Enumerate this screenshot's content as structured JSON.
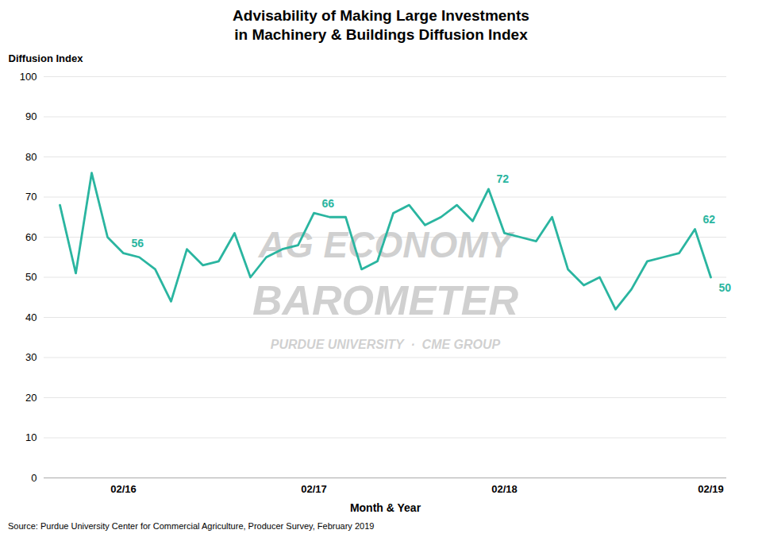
{
  "chart_data": {
    "type": "line",
    "title": "Advisability of Making Large Investments\nin Machinery & Buildings Diffusion Index",
    "ylabel": "Diffusion Index",
    "xlabel": "Month & Year",
    "source": "Source: Purdue University Center for Commercial Agriculture, Producer Survey, February 2019",
    "color": "#2ab5a0",
    "categories": [
      null,
      null,
      null,
      null,
      "02/16",
      null,
      null,
      null,
      null,
      null,
      null,
      null,
      null,
      null,
      null,
      null,
      "02/17",
      null,
      null,
      null,
      null,
      null,
      null,
      null,
      null,
      null,
      null,
      null,
      "02/18",
      null,
      null,
      null,
      null,
      null,
      null,
      null,
      null,
      null,
      null,
      null,
      null,
      "02/19"
    ],
    "values": [
      68,
      51,
      76,
      60,
      56,
      55,
      52,
      44,
      57,
      53,
      54,
      61,
      50,
      55,
      57,
      58,
      66,
      65,
      65,
      52,
      54,
      66,
      68,
      63,
      65,
      68,
      64,
      72,
      61,
      60,
      59,
      65,
      52,
      48,
      50,
      42,
      47,
      54,
      55,
      56,
      62,
      50
    ],
    "ylim": [
      0,
      100
    ],
    "yticks": [
      0,
      10,
      20,
      30,
      40,
      50,
      60,
      70,
      80,
      90,
      100
    ],
    "grid": true,
    "annotations": [
      {
        "index": 4,
        "value": 56,
        "label": "56"
      },
      {
        "index": 16,
        "value": 66,
        "label": "66"
      },
      {
        "index": 27,
        "value": 72,
        "label": "72"
      },
      {
        "index": 40,
        "value": 62,
        "label": "62"
      },
      {
        "index": 41,
        "value": 50,
        "label": "50"
      }
    ],
    "watermark": [
      "AG ECONOMY",
      "BAROMETER",
      "PURDUE UNIVERSITY  ·  CME GROUP"
    ]
  }
}
